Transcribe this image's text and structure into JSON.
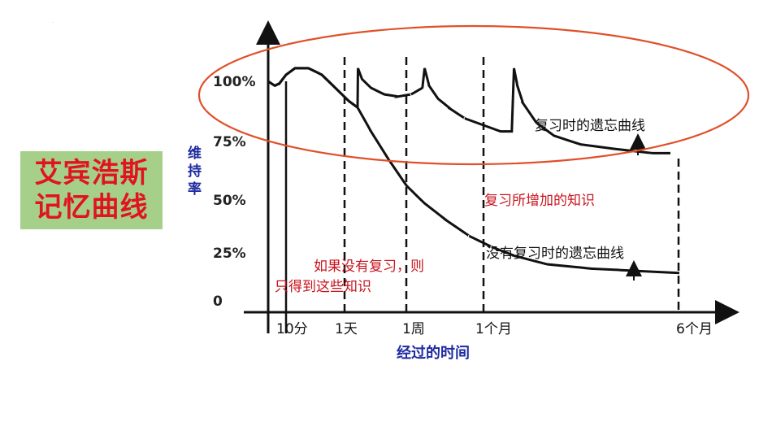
{
  "title": {
    "line1": "艾宾浩斯",
    "line2": "记忆曲线"
  },
  "colors": {
    "title_text": "#e0141e",
    "title_bg": "#a6d08a",
    "axis_label": "#1e2aa0",
    "annotation_red": "#c8141e",
    "ellipse": "#e0502a",
    "curve": "#111111"
  },
  "chart_data": {
    "type": "line",
    "ylabel": "维持率",
    "xlabel": "经过的时间",
    "y_ticks": [
      "100%",
      "75%",
      "50%",
      "25%",
      "0"
    ],
    "x_ticks": [
      "10分",
      "1天",
      "1周",
      "1个月",
      "6个月"
    ],
    "series": [
      {
        "name": "复习时的遗忘曲线",
        "points": [
          [
            0,
            100
          ],
          [
            0.3,
            98
          ],
          [
            0.5,
            99
          ],
          [
            0.8,
            103
          ],
          [
            1.2,
            106
          ],
          [
            1.8,
            106
          ],
          [
            2.4,
            103
          ],
          [
            3.0,
            97
          ],
          [
            3.6,
            91
          ],
          [
            4.0,
            88
          ],
          [
            4.02,
            106
          ],
          [
            4.2,
            101
          ],
          [
            4.6,
            97
          ],
          [
            5.2,
            94
          ],
          [
            5.8,
            93
          ],
          [
            6.4,
            94
          ],
          [
            6.9,
            97
          ],
          [
            7.0,
            106
          ],
          [
            7.2,
            98
          ],
          [
            7.6,
            92
          ],
          [
            8.2,
            87
          ],
          [
            8.8,
            83
          ],
          [
            9.6,
            80
          ],
          [
            10.4,
            77
          ],
          [
            10.9,
            77
          ],
          [
            11.0,
            106
          ],
          [
            11.15,
            98
          ],
          [
            11.4,
            90
          ],
          [
            12.0,
            81
          ],
          [
            12.8,
            75
          ],
          [
            14.0,
            71
          ],
          [
            15.5,
            69
          ],
          [
            17.2,
            67
          ],
          [
            18.0,
            67
          ]
        ]
      },
      {
        "name": "没有复习时的遗忘曲线",
        "points": [
          [
            0,
            100
          ],
          [
            0.3,
            98
          ],
          [
            0.5,
            99
          ],
          [
            0.8,
            103
          ],
          [
            1.2,
            106
          ],
          [
            1.8,
            106
          ],
          [
            2.4,
            103
          ],
          [
            3.0,
            97
          ],
          [
            3.6,
            91
          ],
          [
            4.0,
            88
          ],
          [
            4.6,
            77
          ],
          [
            5.4,
            64
          ],
          [
            6.2,
            52
          ],
          [
            7.0,
            44
          ],
          [
            8.0,
            36
          ],
          [
            9.0,
            29
          ],
          [
            10.0,
            24
          ],
          [
            11.0,
            20
          ],
          [
            12.5,
            16
          ],
          [
            14.5,
            14
          ],
          [
            16.5,
            13
          ],
          [
            18.4,
            12
          ]
        ]
      }
    ],
    "annotations": {
      "review_curve": "复习时的遗忘曲线",
      "added_knowledge": "复习所增加的知识",
      "no_review_curve": "没有复习时的遗忘曲线",
      "no_review_note_line1": "如果没有复习，则",
      "no_review_note_line2": "只得到这些知识"
    }
  }
}
